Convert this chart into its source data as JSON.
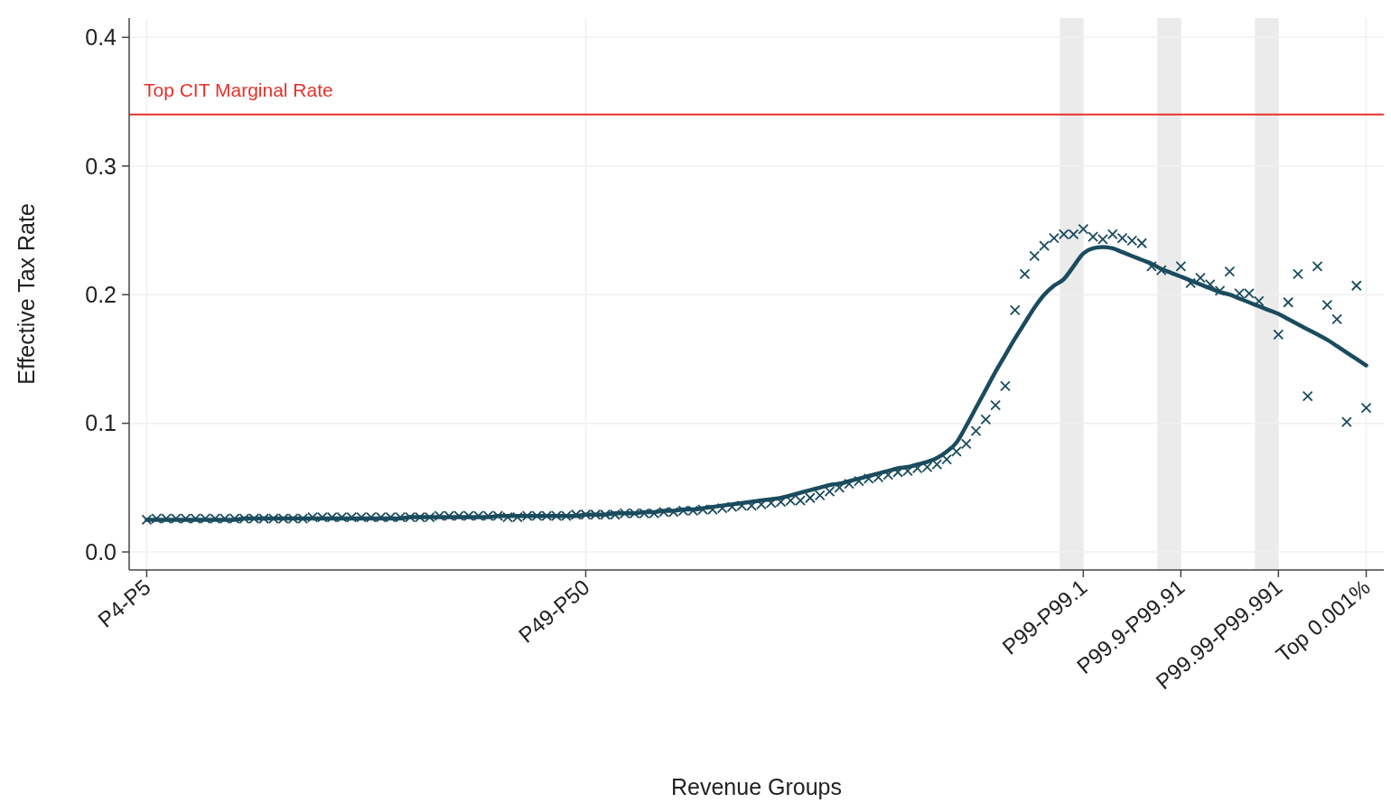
{
  "chart_data": {
    "type": "scatter",
    "xlabel": "Revenue Groups",
    "ylabel": "Effective Tax Rate",
    "categories": [
      "P4-P5",
      null,
      null,
      null,
      null,
      null,
      null,
      null,
      null,
      null,
      null,
      null,
      null,
      null,
      null,
      null,
      null,
      null,
      null,
      null,
      null,
      null,
      null,
      null,
      null,
      null,
      null,
      null,
      null,
      null,
      null,
      null,
      null,
      null,
      null,
      null,
      null,
      null,
      null,
      null,
      null,
      null,
      null,
      null,
      null,
      "P49-P50",
      null,
      null,
      null,
      null,
      null,
      null,
      null,
      null,
      null,
      null,
      null,
      null,
      null,
      null,
      null,
      null,
      null,
      null,
      null,
      null,
      null,
      null,
      null,
      null,
      null,
      null,
      null,
      null,
      null,
      null,
      null,
      null,
      null,
      null,
      null,
      null,
      null,
      null,
      null,
      null,
      null,
      null,
      null,
      null,
      null,
      null,
      null,
      null,
      null,
      null,
      "P99-P99.1",
      null,
      null,
      null,
      null,
      null,
      null,
      null,
      null,
      null,
      "P99.9-P99.91",
      null,
      null,
      null,
      null,
      null,
      null,
      null,
      null,
      null,
      "P99.99-P99.991",
      null,
      null,
      null,
      null,
      null,
      null,
      null,
      null,
      "Top 0.001%"
    ],
    "ylim": [
      -0.014,
      0.415
    ],
    "yticks": [
      {
        "value": 0,
        "label": "0.0"
      },
      0.1,
      0.2,
      0.3,
      0.4
    ],
    "grid": true,
    "marker": "cross",
    "ref_lines": [
      {
        "axis": "y",
        "value": 0.34,
        "label": "Top CIT Marginal Rate",
        "color": "#e8302a"
      }
    ],
    "series": [
      {
        "color": "#1a4b5e",
        "values": [
          0.025,
          0.026,
          0.026,
          0.026,
          0.026,
          0.026,
          0.026,
          0.026,
          0.026,
          0.026,
          0.026,
          0.026,
          0.026,
          0.026,
          0.026,
          0.026,
          0.026,
          0.027,
          0.027,
          0.027,
          0.027,
          0.027,
          0.027,
          0.027,
          0.027,
          0.027,
          0.027,
          0.027,
          0.027,
          0.027,
          0.028,
          0.028,
          0.028,
          0.028,
          0.028,
          0.028,
          0.028,
          0.027,
          0.027,
          0.028,
          0.028,
          0.028,
          0.028,
          0.028,
          0.029,
          0.029,
          0.029,
          0.029,
          0.029,
          0.03,
          0.03,
          0.03,
          0.03,
          0.031,
          0.031,
          0.032,
          0.032,
          0.033,
          0.033,
          0.034,
          0.035,
          0.036,
          0.036,
          0.037,
          0.038,
          0.039,
          0.04,
          0.04,
          0.042,
          0.044,
          0.047,
          0.05,
          0.053,
          0.055,
          0.057,
          0.058,
          0.06,
          0.062,
          0.063,
          0.065,
          0.066,
          0.068,
          0.072,
          0.078,
          0.084,
          0.094,
          0.103,
          0.114,
          0.129,
          0.188,
          0.216,
          0.23,
          0.238,
          0.244,
          0.247,
          0.247,
          0.251,
          0.245,
          0.243,
          0.247,
          0.244,
          0.242,
          0.24,
          0.222,
          0.219,
          null,
          0.222,
          0.209,
          0.213,
          0.208,
          0.203,
          0.218,
          0.201,
          0.201,
          0.195,
          null,
          0.169,
          0.194,
          0.216,
          0.121,
          0.222,
          0.192,
          0.181,
          0.101,
          0.207,
          0.112
        ]
      },
      {
        "type": "line",
        "color": "#1a4b5e",
        "marker": "none",
        "values": [
          0.025,
          0.025,
          0.025,
          0.025,
          0.025,
          0.025,
          0.025,
          0.025,
          0.025,
          0.025,
          0.026,
          0.026,
          0.026,
          0.026,
          0.026,
          0.026,
          0.026,
          0.026,
          0.026,
          0.026,
          0.026,
          0.026,
          0.026,
          0.026,
          0.026,
          0.026,
          0.026,
          0.027,
          0.027,
          0.027,
          0.027,
          0.027,
          0.027,
          0.027,
          0.027,
          0.027,
          0.028,
          0.028,
          0.028,
          0.028,
          0.028,
          0.028,
          0.028,
          0.028,
          0.028,
          0.029,
          0.029,
          0.029,
          0.03,
          0.03,
          0.03,
          0.031,
          0.031,
          0.032,
          0.032,
          0.033,
          0.033,
          0.034,
          0.035,
          0.036,
          0.037,
          0.038,
          0.039,
          0.04,
          0.041,
          0.042,
          0.044,
          0.046,
          0.048,
          0.05,
          0.052,
          0.053,
          0.055,
          0.057,
          0.059,
          0.061,
          0.063,
          0.065,
          0.066,
          0.068,
          0.07,
          0.073,
          0.078,
          0.085,
          0.098,
          0.112,
          0.126,
          0.14,
          0.153,
          0.166,
          0.178,
          0.19,
          0.2,
          0.207,
          0.212,
          0.222,
          0.232,
          0.236,
          0.237,
          0.236,
          0.233,
          0.23,
          0.227,
          0.224,
          0.22,
          0.217,
          0.214,
          0.211,
          0.208,
          0.205,
          0.202,
          0.2,
          0.197,
          0.194,
          0.191,
          0.188,
          0.185,
          0.181,
          0.177,
          0.173,
          0.169,
          0.165,
          0.16,
          0.155,
          0.15,
          0.145
        ]
      }
    ]
  }
}
